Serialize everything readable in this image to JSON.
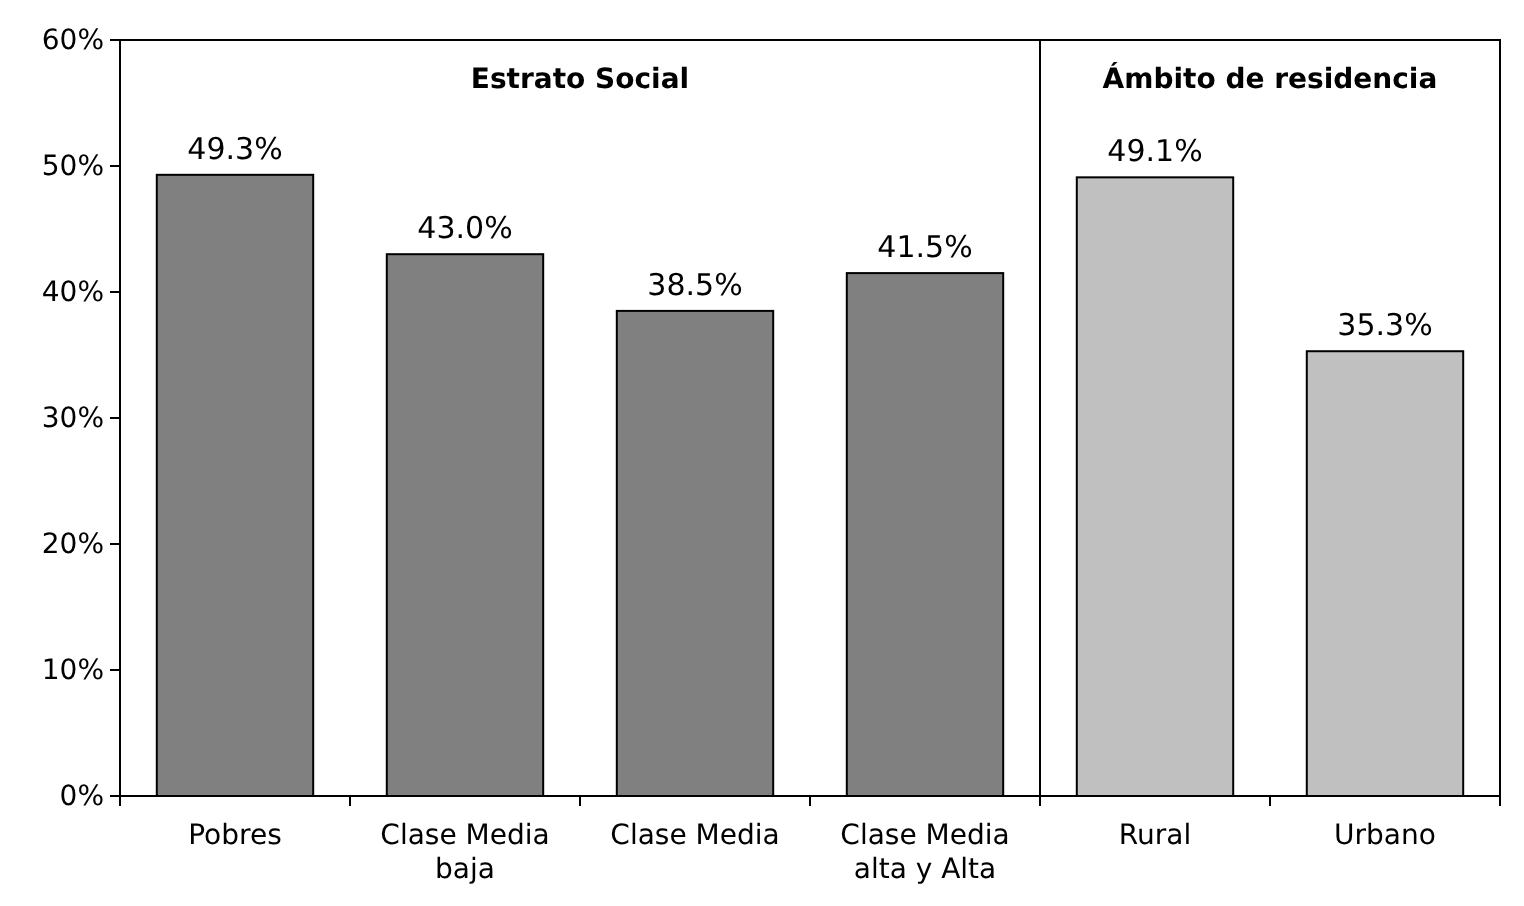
{
  "chart_data": {
    "type": "bar",
    "categories": [
      "Pobres",
      "Clase Media baja",
      "Clase Media",
      "Clase Media alta y Alta",
      "Rural",
      "Urbano"
    ],
    "values": [
      49.3,
      43.0,
      38.5,
      41.5,
      49.1,
      35.3
    ],
    "colors": [
      "#808080",
      "#808080",
      "#808080",
      "#808080",
      "#c0c0c0",
      "#c0c0c0"
    ],
    "value_labels": [
      "49.3%",
      "43.0%",
      "38.5%",
      "41.5%",
      "49.1%",
      "35.3%"
    ],
    "ylim": [
      0,
      60
    ],
    "yticks": [
      {
        "value": 0,
        "label": "0%"
      },
      {
        "value": 10,
        "label": "10%"
      },
      {
        "value": 20,
        "label": "20%"
      },
      {
        "value": 30,
        "label": "30%"
      },
      {
        "value": 40,
        "label": "40%"
      },
      {
        "value": 50,
        "label": "50%"
      },
      {
        "value": 60,
        "label": "60%"
      }
    ],
    "annotations": [
      "Estrato Social",
      "Ámbito de residencia"
    ],
    "grid": false
  }
}
